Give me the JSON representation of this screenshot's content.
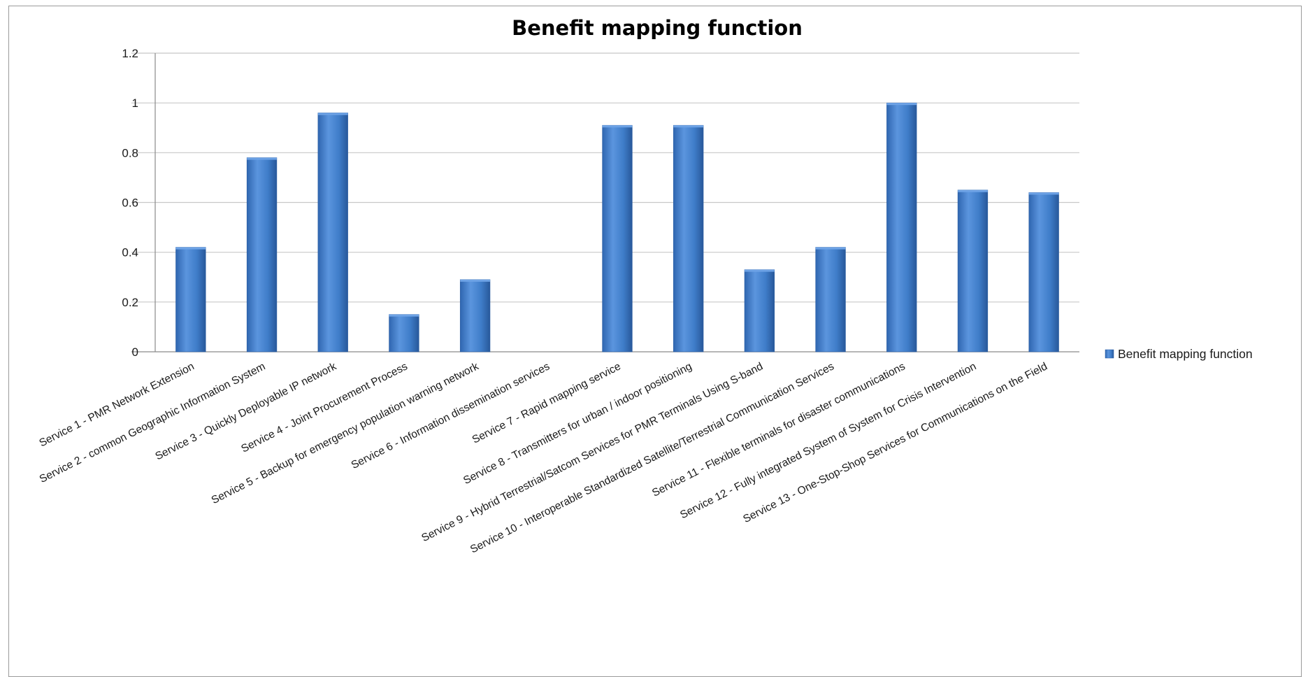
{
  "chart_data": {
    "type": "bar",
    "title": "Benefit mapping function",
    "categories": [
      "Service 1 - PMR Network Extension",
      "Service 2 - common Geographic Information System",
      "Service 3 - Quickly Deployable IP network",
      "Service 4 - Joint Procurement Process",
      "Service 5 - Backup for emergency population warning network",
      "Service 6 - Information dissemination services",
      "Service 7 - Rapid mapping service",
      "Service 8 - Transmitters for urban / indoor positioning",
      "Service 9 - Hybrid Terrestrial/Satcom Services for PMR Terminals Using S-band",
      "Service 10 - Interoperable Standardized Satellite/Terrestrial Communication Services",
      "Service 11 - Flexible terminals for disaster communications",
      "Service 12 - Fully integrated System of System for Crisis Intervention",
      "Service 13 - One-Stop-Shop Services for Communications on the Field"
    ],
    "series": [
      {
        "name": "Benefit mapping function",
        "values": [
          0.42,
          0.78,
          0.96,
          0.15,
          0.29,
          0,
          0.91,
          0.91,
          0.33,
          0.42,
          1.0,
          0.65,
          0.64
        ]
      }
    ],
    "yticks": [
      "0",
      "0.2",
      "0.4",
      "0.6",
      "0.8",
      "1",
      "1.2"
    ],
    "ylim": [
      0,
      1.2
    ],
    "grid": true,
    "legend_position": "right",
    "colors": {
      "bar": "#3f7dc9",
      "bar_light": "#6ea3e6",
      "bar_dark": "#2b5ea3",
      "grid": "#c8c8c8",
      "axis": "#8a8a8a"
    }
  }
}
